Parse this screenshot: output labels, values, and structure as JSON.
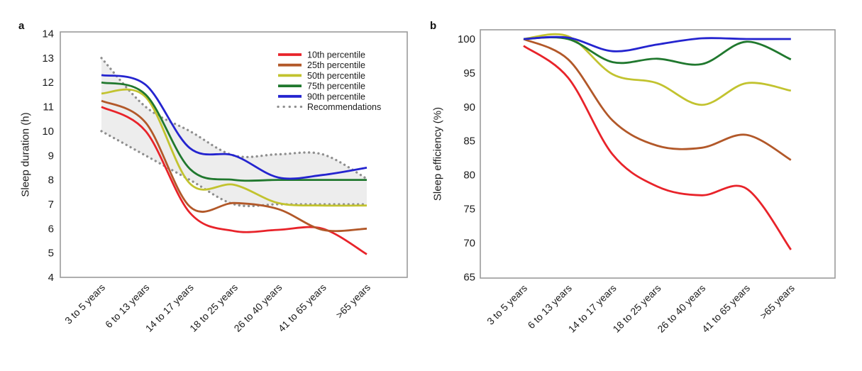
{
  "figure": {
    "background": "#ffffff",
    "border_color": "#9b9b9b",
    "text_color": "#1c1c1c"
  },
  "chart_data": [
    {
      "panel_label": "a",
      "type": "line",
      "title": "",
      "ylabel": "Sleep duration (h)",
      "xlabel": "",
      "ylim": [
        4,
        14
      ],
      "yticks": [
        14,
        13,
        12,
        11,
        10,
        9,
        8,
        7,
        6,
        5,
        4
      ],
      "grid": false,
      "legend_position": "top-right-inside",
      "categories": [
        "3 to 5 years",
        "6 to 13 years",
        "14 to 17 years",
        "18 to 25 years",
        "26 to 40 years",
        "41 to 65 years",
        ">65 years"
      ],
      "series": [
        {
          "name": "10th percentile",
          "color": "#e8232a",
          "values": [
            11.0,
            10.0,
            6.65,
            5.9,
            5.95,
            6.0,
            4.95
          ]
        },
        {
          "name": "25th percentile",
          "color": "#b25829",
          "values": [
            11.25,
            10.35,
            6.9,
            7.05,
            6.8,
            5.95,
            6.0
          ]
        },
        {
          "name": "50th percentile",
          "color": "#c2c32f",
          "values": [
            11.55,
            11.4,
            7.85,
            7.8,
            7.05,
            6.95,
            6.95
          ]
        },
        {
          "name": "75th percentile",
          "color": "#20782e",
          "values": [
            12.0,
            11.5,
            8.45,
            8.0,
            8.0,
            8.0,
            8.0
          ]
        },
        {
          "name": "90th percentile",
          "color": "#2424cf",
          "values": [
            12.3,
            11.9,
            9.3,
            9.0,
            8.1,
            8.2,
            8.5
          ]
        }
      ],
      "recommendations": {
        "name": "Recommendations",
        "color": "#8f8f8f",
        "style": "dotted",
        "upper": [
          13,
          11,
          10,
          9,
          9.05,
          9.05,
          8.05
        ],
        "lower": [
          10,
          9,
          8,
          7,
          7,
          7,
          7
        ],
        "band_fill": "#e9e9e9"
      }
    },
    {
      "panel_label": "b",
      "type": "line",
      "title": "",
      "ylabel": "Sleep efficiency (%)",
      "xlabel": "",
      "ylim": [
        65,
        100
      ],
      "yticks": [
        100,
        95,
        90,
        85,
        80,
        75,
        70,
        65
      ],
      "grid": false,
      "categories": [
        "3 to 5 years",
        "6 to 13 years",
        "14 to 17 years",
        "18 to 25 years",
        "26 to 40 years",
        "41 to 65 years",
        ">65 years"
      ],
      "series": [
        {
          "name": "10th percentile",
          "color": "#e8232a",
          "values": [
            99,
            94.3,
            83,
            78.3,
            77,
            78,
            69
          ]
        },
        {
          "name": "25th percentile",
          "color": "#b25829",
          "values": [
            100,
            97,
            88,
            84.3,
            84,
            85.9,
            82.2
          ]
        },
        {
          "name": "50th percentile",
          "color": "#c2c32f",
          "values": [
            100,
            100.4,
            94.8,
            93.5,
            90.3,
            93.5,
            92.4
          ]
        },
        {
          "name": "75th percentile",
          "color": "#20782e",
          "values": [
            100,
            100,
            96.6,
            97.1,
            96.3,
            99.6,
            97
          ]
        },
        {
          "name": "90th percentile",
          "color": "#2424cf",
          "values": [
            100,
            100.2,
            98.2,
            99.2,
            100.1,
            100,
            100
          ]
        }
      ]
    }
  ]
}
